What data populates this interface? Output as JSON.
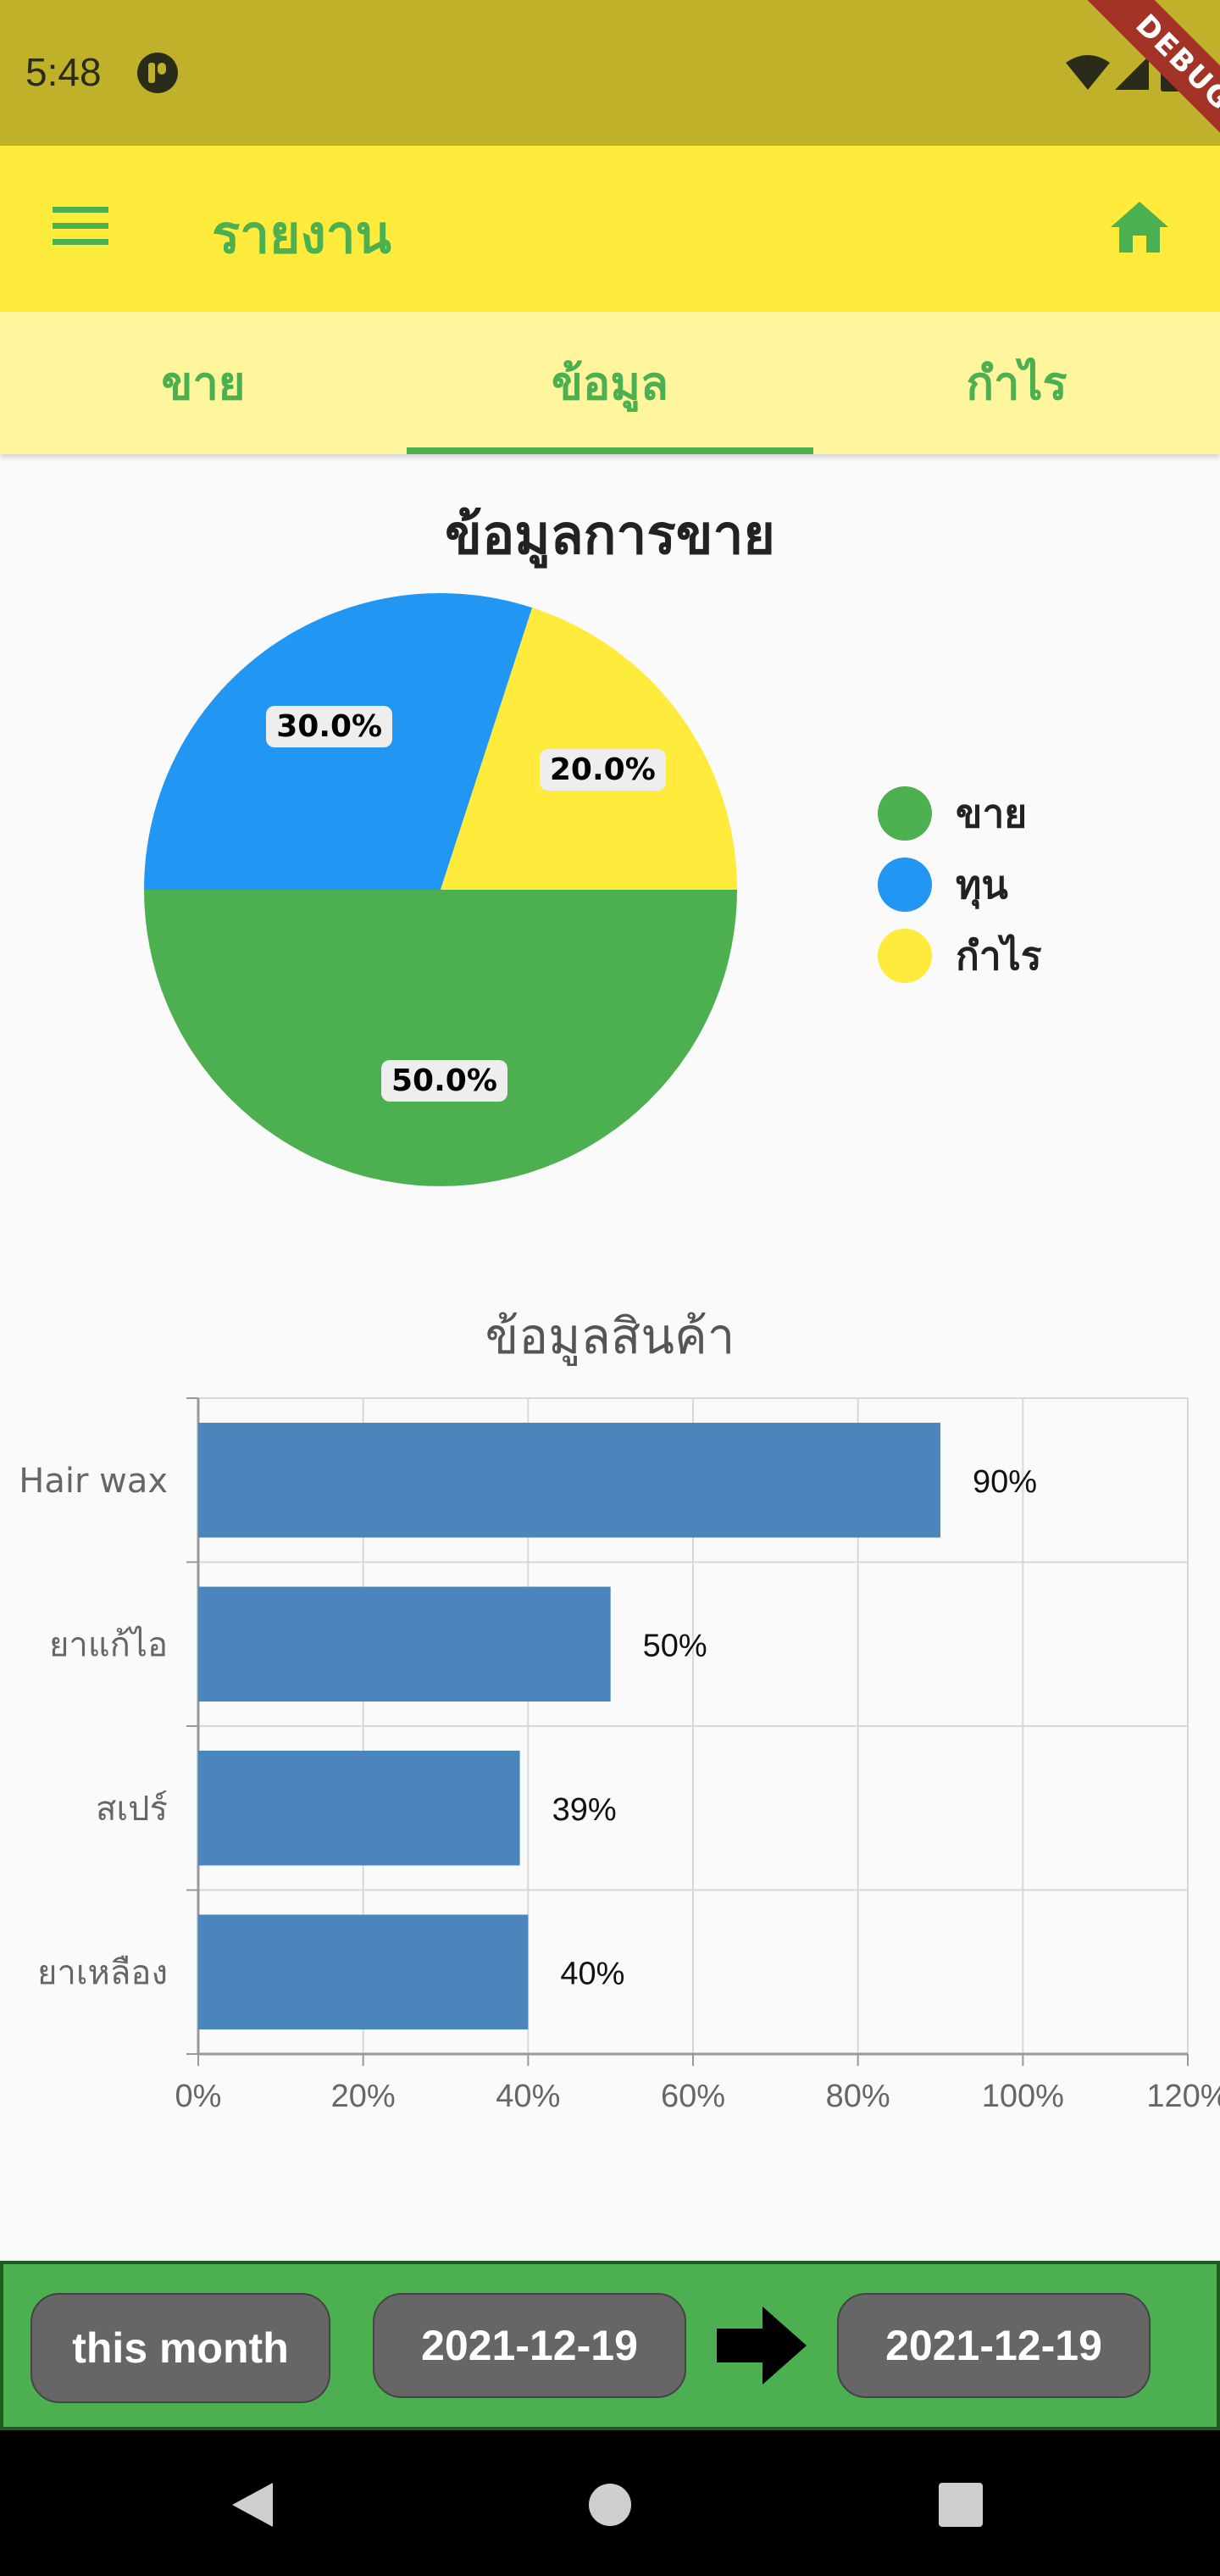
{
  "status_bar": {
    "time": "5:48",
    "debug_label": "DEBUG"
  },
  "app_bar": {
    "title": "รายงาน",
    "menu_icon": "menu-icon",
    "home_icon": "home-icon"
  },
  "tabs": [
    {
      "label": "ขาย",
      "selected": false
    },
    {
      "label": "ข้อมูล",
      "selected": true
    },
    {
      "label": "กำไร",
      "selected": false
    }
  ],
  "colors": {
    "green": "#4caf50",
    "blue": "#2196f3",
    "yellow": "#ffeb3b",
    "bar": "#4a86bb",
    "app_bar": "#ffeb3b",
    "tab_bar": "#fff59d"
  },
  "chart_data": [
    {
      "type": "pie",
      "title": "ข้อมูลการขาย",
      "slices": [
        {
          "name": "ขาย",
          "value": 50.0,
          "label": "50.0%",
          "color": "#4caf50"
        },
        {
          "name": "ทุน",
          "value": 30.0,
          "label": "30.0%",
          "color": "#2196f3"
        },
        {
          "name": "กำไร",
          "value": 20.0,
          "label": "20.0%",
          "color": "#ffeb3b"
        }
      ],
      "legend": {
        "position": "right",
        "items": [
          "ขาย",
          "ทุน",
          "กำไร"
        ]
      }
    },
    {
      "type": "bar",
      "orientation": "horizontal",
      "title": "ข้อมูลสินค้า",
      "categories": [
        "Hair wax",
        "ยาแก้ไอ",
        "สเปร์",
        "ยาเหลือง"
      ],
      "values": [
        90,
        50,
        39,
        40
      ],
      "value_labels": [
        "90%",
        "50%",
        "39%",
        "40%"
      ],
      "xlim": [
        0,
        120
      ],
      "x_ticks": [
        "0%",
        "20%",
        "40%",
        "60%",
        "80%",
        "100%",
        "120%"
      ],
      "grid": true
    }
  ],
  "footer": {
    "period_button": "this month",
    "start_date": "2021-12-19",
    "end_date": "2021-12-19",
    "arrow_icon": "arrow-right-icon"
  },
  "nav": {
    "back_icon": "back-icon",
    "home_icon": "home-circle-icon",
    "recents_icon": "recents-icon"
  }
}
